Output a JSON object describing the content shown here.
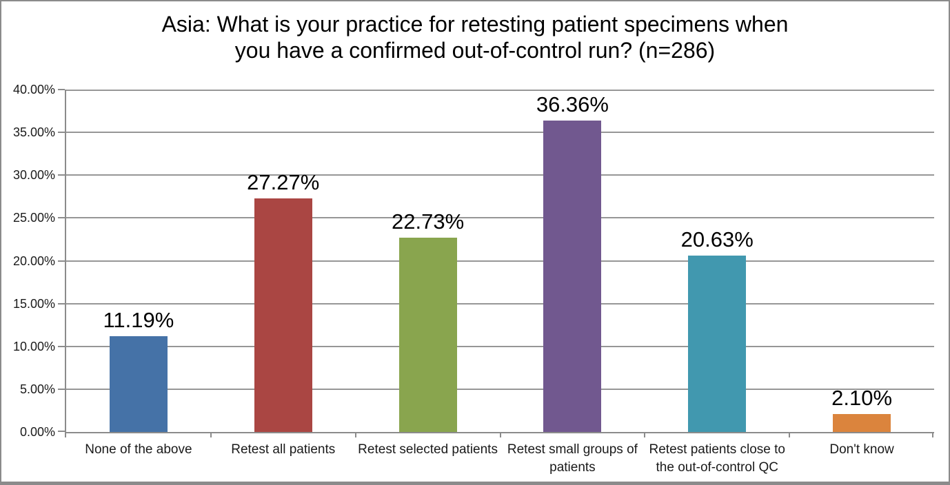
{
  "chart_data": {
    "type": "bar",
    "title": "Asia: What is your practice for retesting patient specimens when you have a confirmed out-of-control run? (n=286)",
    "title_lines": [
      "Asia: What is your practice for retesting patient specimens when",
      "you have a confirmed out-of-control run? (n=286)"
    ],
    "categories": [
      "None of the above",
      "Retest all patients",
      "Retest selected patients",
      "Retest small groups of patients",
      "Retest patients close to the out-of-control QC",
      "Don't know"
    ],
    "category_label_lines": [
      [
        "None of the above"
      ],
      [
        "Retest all patients"
      ],
      [
        "Retest selected patients"
      ],
      [
        "Retest small groups of",
        "patients"
      ],
      [
        "Retest patients close to",
        "the out-of-control QC"
      ],
      [
        "Don't know"
      ]
    ],
    "values": [
      11.19,
      27.27,
      22.73,
      36.36,
      20.63,
      2.1
    ],
    "bar_labels": [
      "11.19%",
      "27.27%",
      "22.73%",
      "36.36%",
      "20.63%",
      "2.10%"
    ],
    "bar_colors": [
      "#4572A7",
      "#AA4643",
      "#89A54E",
      "#71588F",
      "#4198AF",
      "#DB843D"
    ],
    "xlabel": "",
    "ylabel": "",
    "ylim": [
      0,
      40
    ],
    "yticks": [
      0,
      5,
      10,
      15,
      20,
      25,
      30,
      35,
      40
    ],
    "ytick_labels": [
      "0.00%",
      "5.00%",
      "10.00%",
      "15.00%",
      "20.00%",
      "25.00%",
      "30.00%",
      "35.00%",
      "40.00%"
    ],
    "grid": true,
    "legend": false,
    "colors": {
      "background": "#FFFFFF",
      "frame_border": "#8B8B8B",
      "gridline": "#969696",
      "axis": "#8B8B8B",
      "title_text": "#000000",
      "tick_text": "#1A1A1A",
      "bar_label_text": "#000000"
    }
  }
}
